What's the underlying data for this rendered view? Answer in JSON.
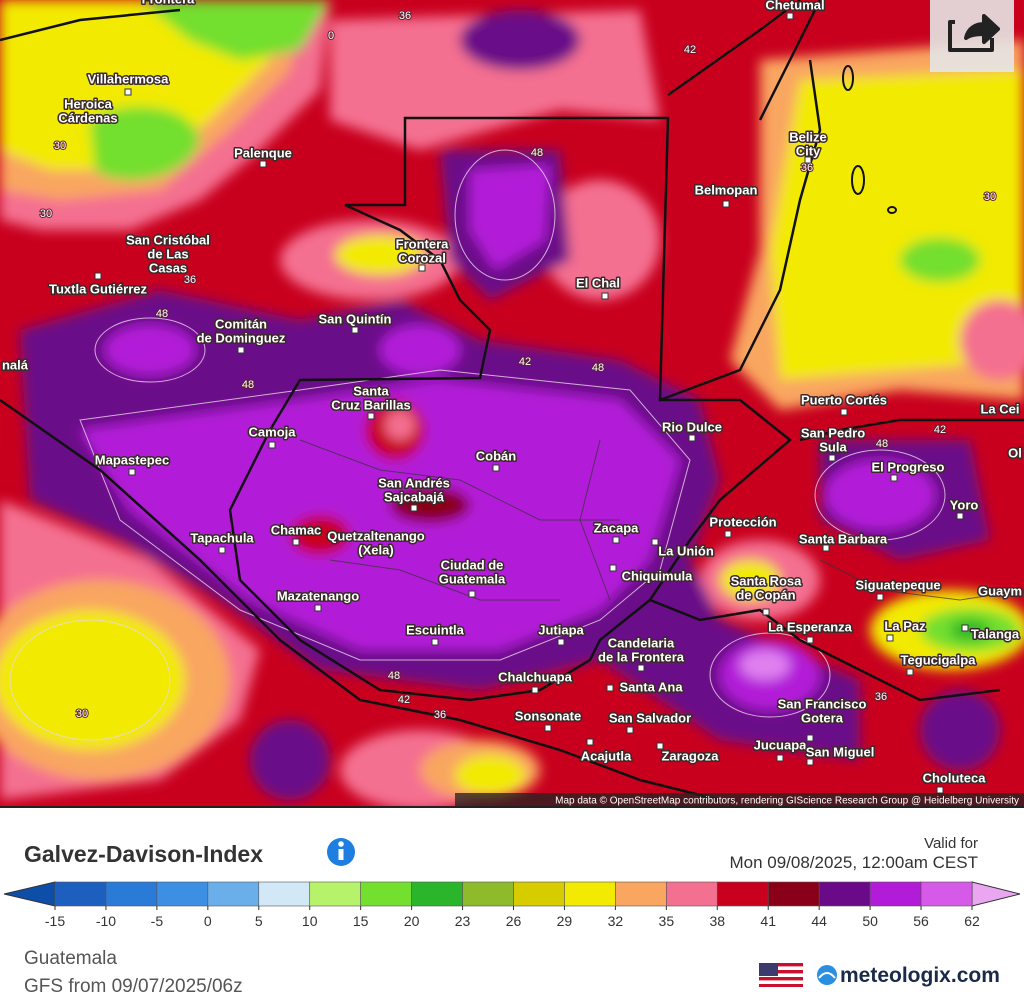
{
  "map": {
    "cities": [
      [
        "Frontera"
      ],
      [
        "Chetumal"
      ],
      [
        "Villahermosa"
      ],
      [
        "Heroica",
        "Cárdenas"
      ],
      [
        "Palenque"
      ],
      [
        "Belize",
        "City"
      ],
      [
        "Belmopan"
      ],
      [
        "San Cristóbal",
        "de Las",
        "Casas"
      ],
      [
        "Frontera",
        "Corozal"
      ],
      [
        "El Chal"
      ],
      [
        "Tuxtla Gutiérrez"
      ],
      [
        "Comitán",
        "de Dominguez"
      ],
      [
        "San Quintín"
      ],
      [
        "Puerto Cortés"
      ],
      [
        "Santa",
        "Cruz Barillas"
      ],
      [
        "Rio Dulce"
      ],
      [
        "La Cei"
      ],
      [
        "San Pedro",
        "Sula"
      ],
      [
        "Camoja"
      ],
      [
        "Mapastepec"
      ],
      [
        "Cobán"
      ],
      [
        "El Progreso"
      ],
      [
        "Ol"
      ],
      [
        "San Andrés",
        "Sajcabajá"
      ],
      [
        "Yoro"
      ],
      [
        "Protección"
      ],
      [
        "Chamac"
      ],
      [
        "Quetzaltenango",
        "(Xela)"
      ],
      [
        "Tapachula"
      ],
      [
        "Zacapa"
      ],
      [
        "Santa Barbara"
      ],
      [
        "La Unión"
      ],
      [
        "Ciudad de",
        "Guatemala"
      ],
      [
        "Chiquimula"
      ],
      [
        "Santa Rosa",
        "de Copán"
      ],
      [
        "Siguatepeque"
      ],
      [
        "Guaym"
      ],
      [
        "Mazatenango"
      ],
      [
        "Escuintla"
      ],
      [
        "Jutiapa"
      ],
      [
        "La Esperanza"
      ],
      [
        "La Paz"
      ],
      [
        "Talanga"
      ],
      [
        "Candelaria",
        "de la Frontera"
      ],
      [
        "Tegucigalpa"
      ],
      [
        "Chalchuapa"
      ],
      [
        "Santa Ana"
      ],
      [
        "San Francisco",
        "Gotera"
      ],
      [
        "Sonsonate"
      ],
      [
        "San Salvador"
      ],
      [
        "Jucuapa"
      ],
      [
        "San Miguel"
      ],
      [
        "Acajutla"
      ],
      [
        "Zaragoza"
      ],
      [
        "Choluteca"
      ],
      [
        "nalá"
      ]
    ],
    "contour_labels": [
      30,
      30,
      30,
      30,
      36,
      36,
      36,
      36,
      36,
      42,
      42,
      42,
      42,
      48,
      48,
      48,
      48,
      48,
      48,
      0
    ],
    "attribution": "Map data © OpenStreetMap contributors, rendering GIScience Research Group @ Heidelberg University"
  },
  "legend": {
    "title": "Galvez-Davison-Index",
    "valid_label": "Valid for",
    "valid_time": "Mon 09/08/2025, 12:00am CEST",
    "ticks": [
      -15,
      -10,
      -5,
      0,
      5,
      10,
      15,
      20,
      23,
      26,
      29,
      32,
      35,
      38,
      41,
      44,
      50,
      56,
      62
    ],
    "colors": [
      "#1d5fbf",
      "#2a7ad8",
      "#3d8fe3",
      "#6aaeea",
      "#d2e8f6",
      "#b6f36b",
      "#73df2f",
      "#2ab52a",
      "#8dbb2c",
      "#d6cc00",
      "#f2ea00",
      "#f9a660",
      "#f47090",
      "#c8001e",
      "#8a0018",
      "#6a0a88",
      "#b21bd8",
      "#d65ae8"
    ],
    "low_color": "#0d4ea8",
    "high_color": "#eba6f2"
  },
  "footer": {
    "region": "Guatemala",
    "model_run": "GFS from 09/07/2025/06z",
    "brand": "meteologix.com"
  }
}
